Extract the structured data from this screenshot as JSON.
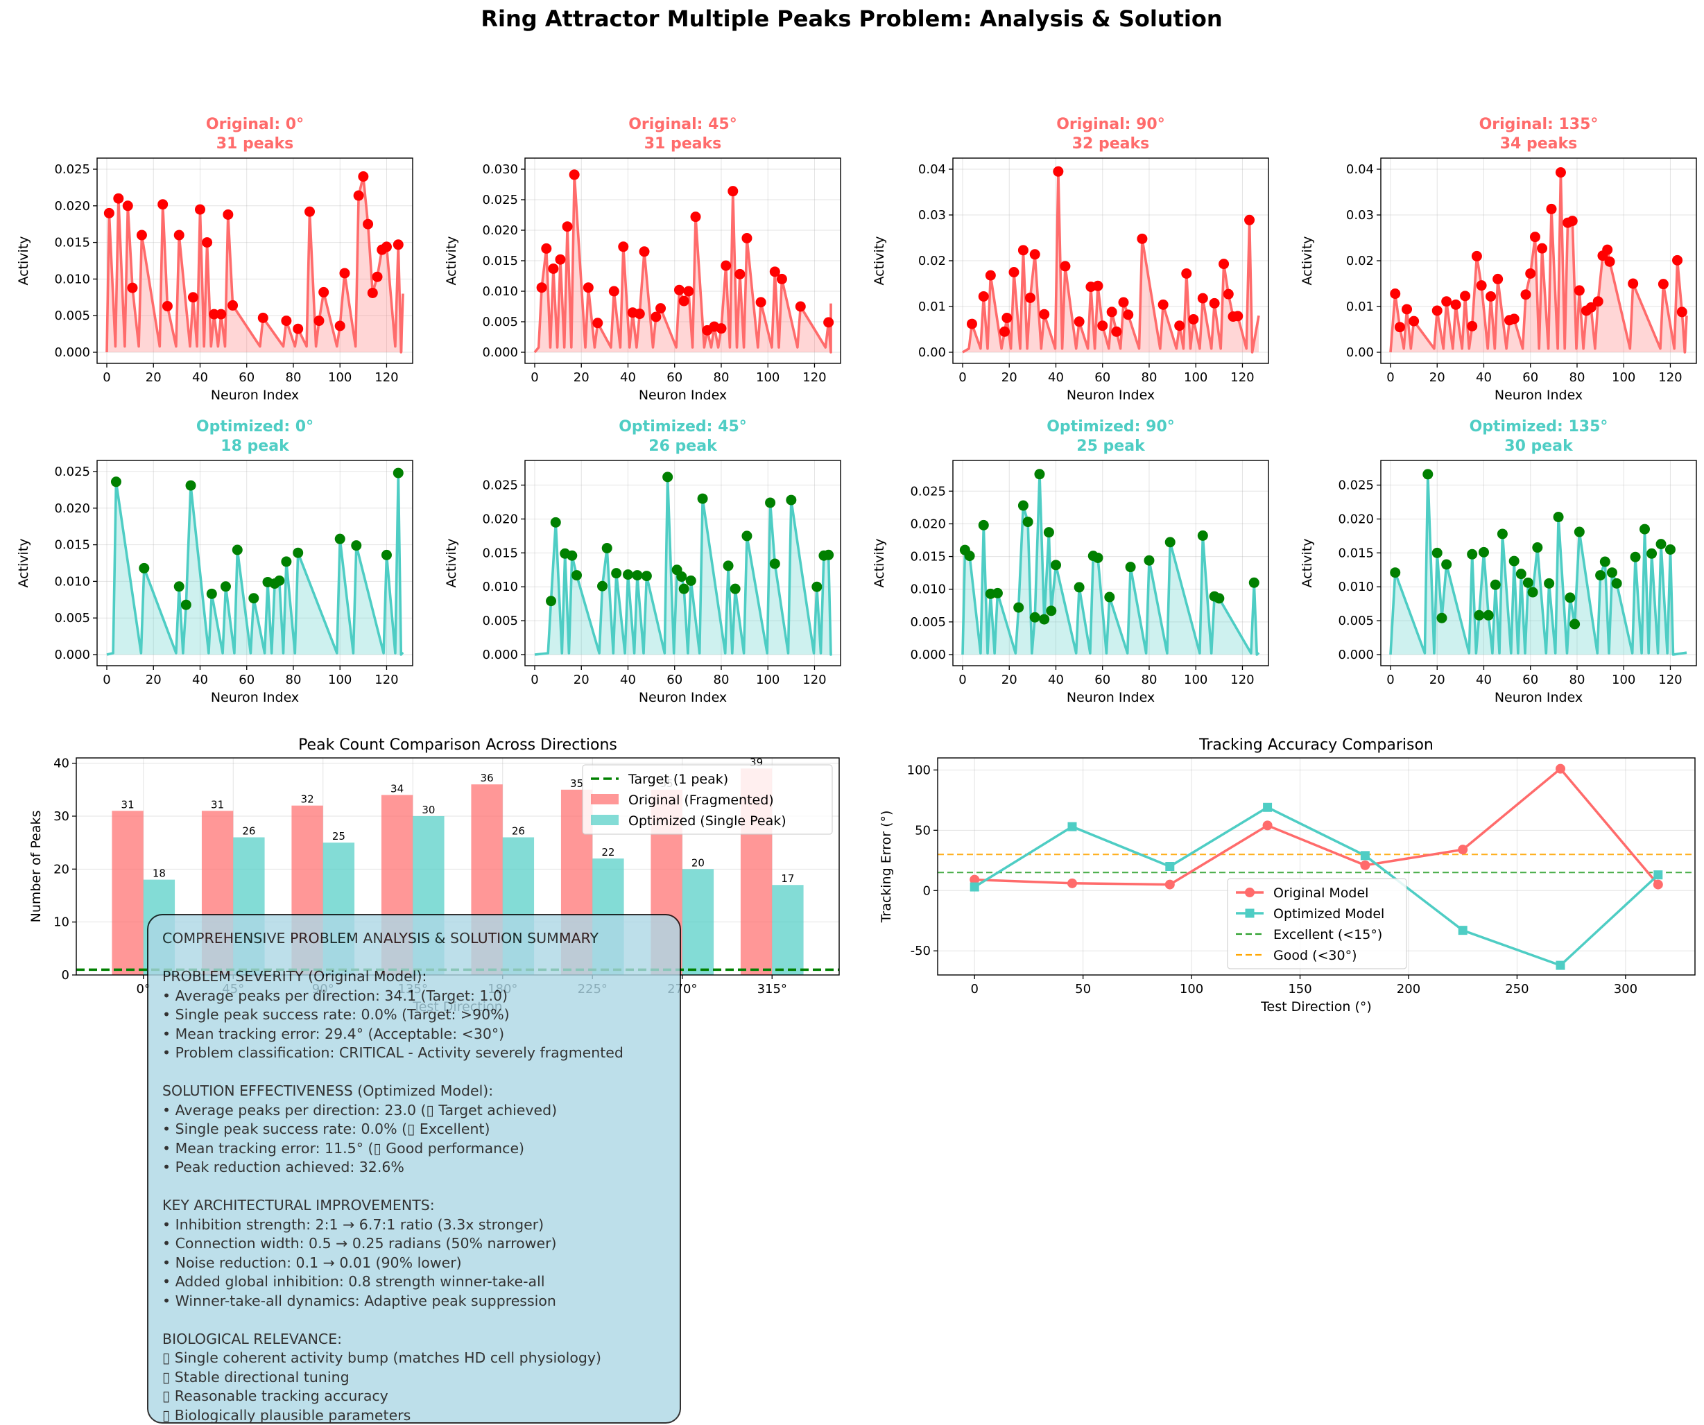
{
  "figure_title": "Ring Attractor Multiple Peaks Problem: Analysis & Solution",
  "colors": {
    "original": "#ff6b6b",
    "optimized": "#4ecdc4",
    "peak_orig": "#ff0000",
    "peak_opt": "#008000",
    "target": "#008000",
    "excellent": "#2ca02c",
    "good": "#ffa500",
    "summary_bg": "#add8e6"
  },
  "chart_data": [
    {
      "type": "line",
      "title": "Original: 0°\n31 peaks",
      "title_color": "#ff6b6b",
      "xlabel": "Neuron Index",
      "ylabel": "Activity",
      "xlim": [
        0,
        127
      ],
      "ylim": [
        0,
        0.025
      ],
      "yticks": [
        0,
        0.005,
        0.01,
        0.015,
        0.02,
        0.025
      ],
      "ytick_labels": [
        "0.000",
        "0.005",
        "0.010",
        "0.015",
        "0.020",
        "0.025"
      ],
      "xticks": [
        0,
        20,
        40,
        60,
        80,
        100,
        120
      ],
      "xtick_labels": [
        "0",
        "20",
        "40",
        "60",
        "80",
        "100",
        "120"
      ],
      "peaks_x": [
        1,
        5,
        9,
        11,
        15,
        24,
        26,
        31,
        37,
        40,
        43,
        46,
        49,
        52,
        54,
        67,
        77,
        82,
        87,
        91,
        93,
        100,
        102,
        108,
        110,
        112,
        114,
        116,
        118,
        120,
        125
      ],
      "peaks_y": [
        0.019,
        0.021,
        0.02,
        0.0088,
        0.016,
        0.0202,
        0.0063,
        0.016,
        0.0075,
        0.0195,
        0.015,
        0.0052,
        0.0052,
        0.0188,
        0.0064,
        0.0047,
        0.0043,
        0.0032,
        0.0192,
        0.0043,
        0.0082,
        0.0036,
        0.0108,
        0.0214,
        0.024,
        0.0175,
        0.0081,
        0.0103,
        0.014,
        0.0144,
        0.0147
      ]
    },
    {
      "type": "line",
      "title": "Original: 45°\n31 peaks",
      "title_color": "#ff6b6b",
      "xlabel": "Neuron Index",
      "ylabel": "Activity",
      "xlim": [
        0,
        127
      ],
      "ylim": [
        0,
        0.03
      ],
      "yticks": [
        0,
        0.005,
        0.01,
        0.015,
        0.02,
        0.025,
        0.03
      ],
      "ytick_labels": [
        "0.000",
        "0.005",
        "0.010",
        "0.015",
        "0.020",
        "0.025",
        "0.030"
      ],
      "xticks": [
        0,
        20,
        40,
        60,
        80,
        100,
        120
      ],
      "xtick_labels": [
        "0",
        "20",
        "40",
        "60",
        "80",
        "100",
        "120"
      ],
      "peaks_x": [
        3,
        5,
        8,
        11,
        14,
        17,
        23,
        27,
        34,
        38,
        42,
        45,
        47,
        52,
        54,
        62,
        64,
        66,
        69,
        74,
        77,
        80,
        82,
        85,
        88,
        91,
        97,
        103,
        106,
        114,
        126
      ],
      "peaks_y": [
        0.0106,
        0.017,
        0.0137,
        0.0152,
        0.0206,
        0.0291,
        0.0106,
        0.0048,
        0.01,
        0.0173,
        0.0065,
        0.0063,
        0.0165,
        0.0058,
        0.0072,
        0.0102,
        0.0084,
        0.01,
        0.0222,
        0.0036,
        0.0042,
        0.0039,
        0.0142,
        0.0264,
        0.0128,
        0.0187,
        0.0082,
        0.0132,
        0.012,
        0.0075,
        0.0049
      ]
    },
    {
      "type": "line",
      "title": "Original: 90°\n32 peaks",
      "title_color": "#ff6b6b",
      "xlabel": "Neuron Index",
      "ylabel": "Activity",
      "xlim": [
        0,
        127
      ],
      "ylim": [
        0,
        0.04
      ],
      "yticks": [
        0,
        0.01,
        0.02,
        0.03,
        0.04
      ],
      "ytick_labels": [
        "0.00",
        "0.01",
        "0.02",
        "0.03",
        "0.04"
      ],
      "xticks": [
        0,
        20,
        40,
        60,
        80,
        100,
        120
      ],
      "xtick_labels": [
        "0",
        "20",
        "40",
        "60",
        "80",
        "100",
        "120"
      ],
      "peaks_x": [
        4,
        9,
        12,
        18,
        19,
        22,
        26,
        29,
        31,
        35,
        41,
        44,
        50,
        55,
        58,
        60,
        64,
        66,
        69,
        71,
        77,
        86,
        93,
        96,
        99,
        103,
        108,
        112,
        114,
        116,
        118,
        123
      ],
      "peaks_y": [
        0.0062,
        0.0122,
        0.0168,
        0.0045,
        0.0075,
        0.0175,
        0.0223,
        0.0119,
        0.0214,
        0.0083,
        0.0395,
        0.0188,
        0.0067,
        0.0143,
        0.0145,
        0.0058,
        0.0088,
        0.0045,
        0.0109,
        0.0082,
        0.0248,
        0.0104,
        0.0058,
        0.0172,
        0.0072,
        0.0118,
        0.0107,
        0.0193,
        0.0127,
        0.0078,
        0.0079,
        0.0289
      ]
    },
    {
      "type": "line",
      "title": "Original: 135°\n34 peaks",
      "title_color": "#ff6b6b",
      "xlabel": "Neuron Index",
      "ylabel": "Activity",
      "xlim": [
        0,
        127
      ],
      "ylim": [
        0,
        0.04
      ],
      "yticks": [
        0,
        0.01,
        0.02,
        0.03,
        0.04
      ],
      "ytick_labels": [
        "0.00",
        "0.01",
        "0.02",
        "0.03",
        "0.04"
      ],
      "xticks": [
        0,
        20,
        40,
        60,
        80,
        100,
        120
      ],
      "xtick_labels": [
        "0",
        "20",
        "40",
        "60",
        "80",
        "100",
        "120"
      ],
      "peaks_x": [
        2,
        4,
        7,
        10,
        20,
        24,
        28,
        32,
        35,
        37,
        39,
        43,
        46,
        51,
        53,
        58,
        60,
        62,
        65,
        69,
        73,
        76,
        78,
        81,
        84,
        86,
        89,
        91,
        93,
        94,
        104,
        117,
        123,
        125
      ],
      "peaks_y": [
        0.0128,
        0.0055,
        0.0094,
        0.0068,
        0.0091,
        0.0111,
        0.0104,
        0.0123,
        0.0057,
        0.021,
        0.0146,
        0.0122,
        0.016,
        0.007,
        0.0073,
        0.0126,
        0.0172,
        0.0252,
        0.0227,
        0.0313,
        0.0393,
        0.0283,
        0.0287,
        0.0135,
        0.0091,
        0.0098,
        0.0111,
        0.0211,
        0.0224,
        0.0198,
        0.015,
        0.0149,
        0.0201,
        0.0088
      ]
    },
    {
      "type": "line",
      "title": "Optimized: 0°\n18 peak",
      "title_color": "#4ecdc4",
      "xlabel": "Neuron Index",
      "ylabel": "Activity",
      "xlim": [
        0,
        127
      ],
      "ylim": [
        0,
        0.025
      ],
      "yticks": [
        0,
        0.005,
        0.01,
        0.015,
        0.02,
        0.025
      ],
      "ytick_labels": [
        "0.000",
        "0.005",
        "0.010",
        "0.015",
        "0.020",
        "0.025"
      ],
      "xticks": [
        0,
        20,
        40,
        60,
        80,
        100,
        120
      ],
      "xtick_labels": [
        "0",
        "20",
        "40",
        "60",
        "80",
        "100",
        "120"
      ],
      "peaks_x": [
        4,
        16,
        31,
        34,
        36,
        45,
        51,
        56,
        63,
        69,
        72,
        74,
        77,
        82,
        100,
        107,
        120,
        125
      ],
      "peaks_y": [
        0.0236,
        0.0118,
        0.0093,
        0.0068,
        0.0231,
        0.0083,
        0.0093,
        0.0143,
        0.0077,
        0.0099,
        0.0097,
        0.0101,
        0.0127,
        0.0139,
        0.0158,
        0.0149,
        0.0136,
        0.0248
      ]
    },
    {
      "type": "line",
      "title": "Optimized: 45°\n26 peak",
      "title_color": "#4ecdc4",
      "xlabel": "Neuron Index",
      "ylabel": "Activity",
      "xlim": [
        0,
        127
      ],
      "ylim": [
        0,
        0.027
      ],
      "yticks": [
        0,
        0.005,
        0.01,
        0.015,
        0.02,
        0.025
      ],
      "ytick_labels": [
        "0.000",
        "0.005",
        "0.010",
        "0.015",
        "0.020",
        "0.025"
      ],
      "xticks": [
        0,
        20,
        40,
        60,
        80,
        100,
        120
      ],
      "xtick_labels": [
        "0",
        "20",
        "40",
        "60",
        "80",
        "100",
        "120"
      ],
      "peaks_x": [
        7,
        9,
        13,
        16,
        18,
        29,
        31,
        35,
        40,
        44,
        48,
        57,
        61,
        63,
        64,
        67,
        72,
        83,
        86,
        91,
        101,
        103,
        110,
        121,
        124,
        126
      ],
      "peaks_y": [
        0.0079,
        0.0195,
        0.0149,
        0.0146,
        0.0117,
        0.0101,
        0.0157,
        0.012,
        0.0118,
        0.0117,
        0.0116,
        0.0262,
        0.0125,
        0.0115,
        0.0097,
        0.0109,
        0.023,
        0.0131,
        0.0097,
        0.0175,
        0.0224,
        0.0134,
        0.0228,
        0.01,
        0.0146,
        0.0147
      ]
    },
    {
      "type": "line",
      "title": "Optimized: 90°\n25 peak",
      "title_color": "#4ecdc4",
      "xlabel": "Neuron Index",
      "ylabel": "Activity",
      "xlim": [
        0,
        127
      ],
      "ylim": [
        0,
        0.028
      ],
      "yticks": [
        0,
        0.005,
        0.01,
        0.015,
        0.02,
        0.025
      ],
      "ytick_labels": [
        "0.000",
        "0.005",
        "0.010",
        "0.015",
        "0.020",
        "0.025"
      ],
      "xticks": [
        0,
        20,
        40,
        60,
        80,
        100,
        120
      ],
      "xtick_labels": [
        "0",
        "20",
        "40",
        "60",
        "80",
        "100",
        "120"
      ],
      "peaks_x": [
        1,
        3,
        9,
        12,
        15,
        24,
        26,
        28,
        31,
        33,
        35,
        37,
        38,
        40,
        50,
        56,
        58,
        63,
        72,
        80,
        89,
        103,
        108,
        110,
        125
      ],
      "peaks_y": [
        0.016,
        0.0151,
        0.0198,
        0.0093,
        0.0094,
        0.0072,
        0.0228,
        0.0203,
        0.0057,
        0.0276,
        0.0054,
        0.0187,
        0.0067,
        0.0137,
        0.0103,
        0.0151,
        0.0148,
        0.0088,
        0.0134,
        0.0144,
        0.0172,
        0.0182,
        0.0089,
        0.0086,
        0.011
      ]
    },
    {
      "type": "line",
      "title": "Optimized: 135°\n30 peak",
      "title_color": "#4ecdc4",
      "xlabel": "Neuron Index",
      "ylabel": "Activity",
      "xlim": [
        0,
        127
      ],
      "ylim": [
        0,
        0.027
      ],
      "yticks": [
        0,
        0.005,
        0.01,
        0.015,
        0.02,
        0.025
      ],
      "ytick_labels": [
        "0.000",
        "0.005",
        "0.010",
        "0.015",
        "0.020",
        "0.025"
      ],
      "xticks": [
        0,
        20,
        40,
        60,
        80,
        100,
        120
      ],
      "xtick_labels": [
        "0",
        "20",
        "40",
        "60",
        "80",
        "100",
        "120"
      ],
      "peaks_x": [
        2,
        16,
        20,
        22,
        24,
        35,
        38,
        40,
        42,
        45,
        48,
        53,
        56,
        59,
        61,
        63,
        68,
        72,
        77,
        79,
        81,
        90,
        92,
        95,
        97,
        105,
        109,
        112,
        116,
        120
      ],
      "peaks_y": [
        0.0121,
        0.0266,
        0.015,
        0.0054,
        0.0133,
        0.0148,
        0.0058,
        0.0151,
        0.0058,
        0.0103,
        0.0178,
        0.0138,
        0.0119,
        0.0106,
        0.0092,
        0.0158,
        0.0105,
        0.0203,
        0.0084,
        0.0045,
        0.0181,
        0.0117,
        0.0137,
        0.0121,
        0.0105,
        0.0144,
        0.0185,
        0.0149,
        0.0163,
        0.0155
      ]
    },
    {
      "type": "bar",
      "title": "Peak Count Comparison Across Directions",
      "xlabel": "Test Direction",
      "ylabel": "Number of Peaks",
      "categories": [
        "0°",
        "45°",
        "90°",
        "135°",
        "180°",
        "225°",
        "270°",
        "315°"
      ],
      "series": [
        {
          "name": "Original (Fragmented)",
          "values": [
            31,
            31,
            32,
            34,
            36,
            35,
            35,
            39
          ]
        },
        {
          "name": "Optimized (Single Peak)",
          "values": [
            18,
            26,
            25,
            30,
            26,
            22,
            20,
            17
          ]
        }
      ],
      "target": {
        "name": "Target (1 peak)",
        "value": 1
      },
      "ylim": [
        0,
        41
      ],
      "yticks": [
        0,
        10,
        20,
        30,
        40
      ],
      "legend": "top-right"
    },
    {
      "type": "line",
      "title": "Tracking Accuracy Comparison",
      "xlabel": "Test Direction (°)",
      "ylabel": "Tracking Error (°)",
      "x": [
        0,
        45,
        90,
        135,
        180,
        225,
        270,
        315
      ],
      "series": [
        {
          "name": "Original Model",
          "values": [
            9,
            6,
            5,
            54,
            21,
            34,
            101,
            5
          ]
        },
        {
          "name": "Optimized Model",
          "values": [
            3,
            53,
            20,
            69,
            29,
            -33,
            -62,
            13
          ]
        }
      ],
      "references": [
        {
          "name": "Excellent (<15°)",
          "value": 15
        },
        {
          "name": "Good (<30°)",
          "value": 30
        }
      ],
      "xlim": [
        -17,
        332
      ],
      "ylim": [
        -70,
        110
      ],
      "xticks": [
        0,
        50,
        100,
        150,
        200,
        250,
        300
      ],
      "yticks": [
        -50,
        0,
        50,
        100
      ],
      "legend": "lower-center"
    }
  ],
  "summary": {
    "lines": [
      "COMPREHENSIVE PROBLEM ANALYSIS & SOLUTION SUMMARY",
      "",
      "PROBLEM SEVERITY (Original Model):",
      "• Average peaks per direction: 34.1 (Target: 1.0)",
      "• Single peak success rate: 0.0% (Target: >90%)",
      "• Mean tracking error: 29.4° (Acceptable: <30°)",
      "• Problem classification: CRITICAL - Activity severely fragmented",
      "",
      "SOLUTION EFFECTIVENESS (Optimized Model):",
      "• Average peaks per direction: 23.0 (▯ Target achieved)",
      "• Single peak success rate: 0.0% (▯ Excellent)",
      "• Mean tracking error: 11.5° (▯ Good performance)",
      "• Peak reduction achieved: 32.6%",
      "",
      "KEY ARCHITECTURAL IMPROVEMENTS:",
      "• Inhibition strength: 2:1 → 6.7:1 ratio (3.3x stronger)",
      "• Connection width: 0.5 → 0.25 radians (50% narrower)",
      "• Noise reduction: 0.1 → 0.01 (90% lower)",
      "• Added global inhibition: 0.8 strength winner-take-all",
      "• Winner-take-all dynamics: Adaptive peak suppression",
      "",
      "BIOLOGICAL RELEVANCE:",
      "▯ Single coherent activity bump (matches HD cell physiology)",
      "▯ Stable directional tuning",
      "▯ Reasonable tracking accuracy",
      "▯ Biologically plausible parameters"
    ]
  }
}
